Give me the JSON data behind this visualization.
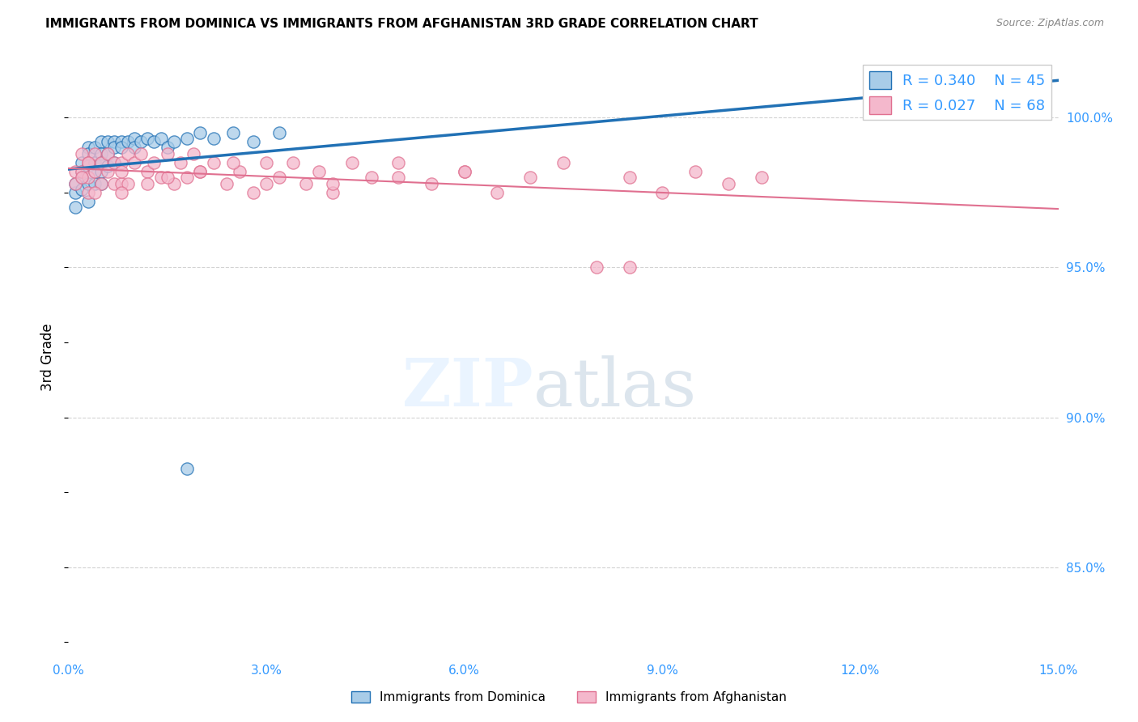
{
  "title": "IMMIGRANTS FROM DOMINICA VS IMMIGRANTS FROM AFGHANISTAN 3RD GRADE CORRELATION CHART",
  "source": "Source: ZipAtlas.com",
  "ylabel": "3rd Grade",
  "ytick_labels": [
    "85.0%",
    "90.0%",
    "95.0%",
    "100.0%"
  ],
  "ytick_values": [
    0.85,
    0.9,
    0.95,
    1.0
  ],
  "xmin": 0.0,
  "xmax": 0.15,
  "ymin": 0.82,
  "ymax": 1.02,
  "legend_R1": "R = 0.340",
  "legend_N1": "N = 45",
  "legend_R2": "R = 0.027",
  "legend_N2": "N = 68",
  "color_dominica": "#a8cce8",
  "color_afghanistan": "#f4b8cc",
  "color_line_dominica": "#2171b5",
  "color_line_afghanistan": "#e07090",
  "color_axis_labels": "#3399ff",
  "dominica_x": [
    0.001,
    0.001,
    0.001,
    0.002,
    0.002,
    0.002,
    0.002,
    0.003,
    0.003,
    0.003,
    0.003,
    0.003,
    0.004,
    0.004,
    0.004,
    0.004,
    0.005,
    0.005,
    0.005,
    0.005,
    0.005,
    0.006,
    0.006,
    0.006,
    0.007,
    0.007,
    0.007,
    0.008,
    0.008,
    0.009,
    0.01,
    0.01,
    0.011,
    0.012,
    0.013,
    0.014,
    0.015,
    0.016,
    0.018,
    0.02,
    0.022,
    0.025,
    0.028,
    0.032,
    0.018
  ],
  "dominica_y": [
    0.97,
    0.975,
    0.978,
    0.982,
    0.985,
    0.98,
    0.976,
    0.99,
    0.988,
    0.984,
    0.978,
    0.972,
    0.99,
    0.985,
    0.982,
    0.978,
    0.992,
    0.988,
    0.985,
    0.982,
    0.978,
    0.992,
    0.988,
    0.984,
    0.992,
    0.99,
    0.985,
    0.992,
    0.99,
    0.992,
    0.993,
    0.99,
    0.992,
    0.993,
    0.992,
    0.993,
    0.99,
    0.992,
    0.993,
    0.995,
    0.993,
    0.995,
    0.992,
    0.995,
    0.883
  ],
  "afghanistan_x": [
    0.001,
    0.001,
    0.002,
    0.002,
    0.003,
    0.003,
    0.003,
    0.004,
    0.004,
    0.005,
    0.005,
    0.006,
    0.006,
    0.007,
    0.007,
    0.008,
    0.008,
    0.009,
    0.009,
    0.01,
    0.011,
    0.012,
    0.013,
    0.014,
    0.015,
    0.016,
    0.017,
    0.018,
    0.019,
    0.02,
    0.022,
    0.024,
    0.026,
    0.028,
    0.03,
    0.032,
    0.034,
    0.036,
    0.038,
    0.04,
    0.043,
    0.046,
    0.05,
    0.055,
    0.06,
    0.065,
    0.07,
    0.075,
    0.08,
    0.085,
    0.09,
    0.095,
    0.1,
    0.105,
    0.085,
    0.06,
    0.04,
    0.025,
    0.015,
    0.008,
    0.004,
    0.003,
    0.002,
    0.008,
    0.012,
    0.02,
    0.03,
    0.05
  ],
  "afghanistan_y": [
    0.982,
    0.978,
    0.988,
    0.982,
    0.985,
    0.98,
    0.975,
    0.988,
    0.982,
    0.985,
    0.978,
    0.988,
    0.982,
    0.985,
    0.978,
    0.985,
    0.978,
    0.988,
    0.978,
    0.985,
    0.988,
    0.982,
    0.985,
    0.98,
    0.988,
    0.978,
    0.985,
    0.98,
    0.988,
    0.982,
    0.985,
    0.978,
    0.982,
    0.975,
    0.985,
    0.98,
    0.985,
    0.978,
    0.982,
    0.975,
    0.985,
    0.98,
    0.985,
    0.978,
    0.982,
    0.975,
    0.98,
    0.985,
    0.95,
    0.98,
    0.975,
    0.982,
    0.978,
    0.98,
    0.95,
    0.982,
    0.978,
    0.985,
    0.98,
    0.982,
    0.975,
    0.985,
    0.98,
    0.975,
    0.978,
    0.982,
    0.978,
    0.98
  ]
}
